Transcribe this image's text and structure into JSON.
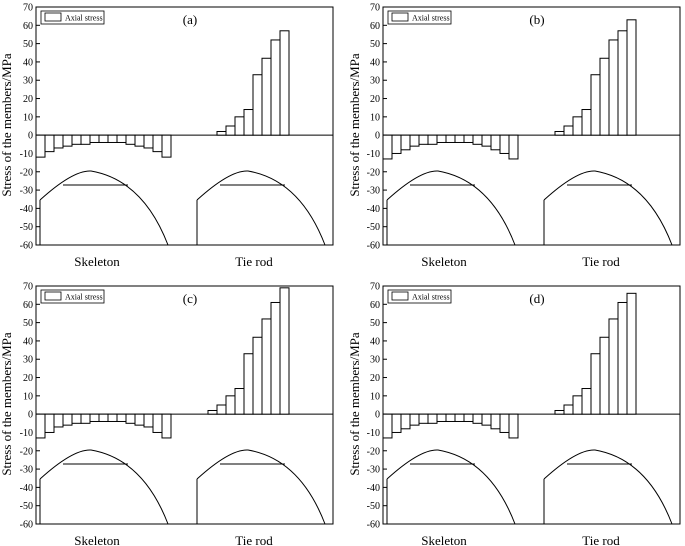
{
  "figure": {
    "ylabel": "Stress of the members/MPa",
    "legend_label": "Axial stress",
    "x_labels": [
      "Skeleton",
      "Tie rod"
    ],
    "y_ticks": [
      70,
      60,
      50,
      40,
      30,
      20,
      10,
      0,
      -10,
      -20,
      -30,
      -40,
      -50,
      -60
    ]
  },
  "chart_data": [
    {
      "type": "bar",
      "panel_label": "(a)",
      "ylim": [
        -60,
        70
      ],
      "legend": "Axial stress",
      "legend_position": "top-left",
      "xlabel_groups": [
        "Skeleton",
        "Tie rod"
      ],
      "series": [
        {
          "name": "Axial stress",
          "group": "Skeleton",
          "values": [
            -12,
            -9,
            -7,
            -6,
            -5,
            -5,
            -4,
            -4,
            -4,
            -4,
            -5,
            -6,
            -7,
            -9,
            -12
          ]
        },
        {
          "name": "Axial stress",
          "group": "Tie rod",
          "values": [
            2,
            5,
            10,
            14,
            33,
            42,
            52,
            57
          ]
        }
      ]
    },
    {
      "type": "bar",
      "panel_label": "(b)",
      "ylim": [
        -60,
        70
      ],
      "legend": "Axial stress",
      "legend_position": "top-left",
      "xlabel_groups": [
        "Skeleton",
        "Tie rod"
      ],
      "series": [
        {
          "name": "Axial stress",
          "group": "Skeleton",
          "values": [
            -13,
            -10,
            -8,
            -6,
            -5,
            -5,
            -4,
            -4,
            -4,
            -4,
            -5,
            -6,
            -8,
            -10,
            -13
          ]
        },
        {
          "name": "Axial stress",
          "group": "Tie rod",
          "values": [
            2,
            5,
            10,
            14,
            33,
            42,
            52,
            57,
            63
          ]
        }
      ]
    },
    {
      "type": "bar",
      "panel_label": "(c)",
      "ylim": [
        -60,
        70
      ],
      "legend": "Axial stress",
      "legend_position": "top-left",
      "xlabel_groups": [
        "Skeleton",
        "Tie rod"
      ],
      "series": [
        {
          "name": "Axial stress",
          "group": "Skeleton",
          "values": [
            -13,
            -10,
            -7,
            -6,
            -5,
            -5,
            -4,
            -4,
            -4,
            -4,
            -5,
            -6,
            -7,
            -10,
            -13
          ]
        },
        {
          "name": "Axial stress",
          "group": "Tie rod",
          "values": [
            2,
            5,
            10,
            14,
            33,
            42,
            52,
            61,
            69
          ]
        }
      ]
    },
    {
      "type": "bar",
      "panel_label": "(d)",
      "ylim": [
        -60,
        70
      ],
      "legend": "Axial stress",
      "legend_position": "top-left",
      "xlabel_groups": [
        "Skeleton",
        "Tie rod"
      ],
      "series": [
        {
          "name": "Axial stress",
          "group": "Skeleton",
          "values": [
            -13,
            -10,
            -8,
            -6,
            -5,
            -5,
            -4,
            -4,
            -4,
            -4,
            -5,
            -6,
            -8,
            -10,
            -13
          ]
        },
        {
          "name": "Axial stress",
          "group": "Tie rod",
          "values": [
            2,
            5,
            10,
            14,
            33,
            42,
            52,
            61,
            66
          ]
        }
      ]
    }
  ]
}
